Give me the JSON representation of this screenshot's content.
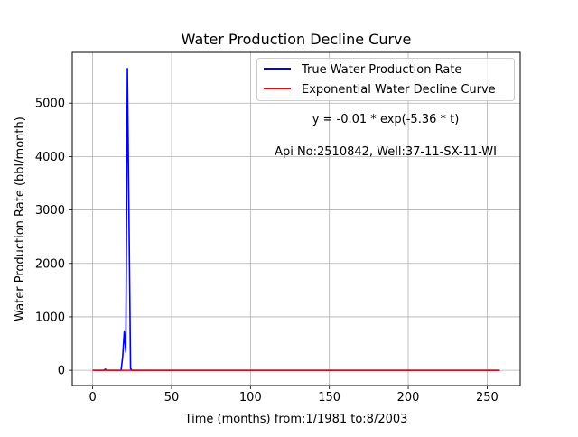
{
  "chart_data": {
    "type": "line",
    "title": "Water Production Decline Curve",
    "xlabel": "Time (months) from:1/1981 to:8/2003",
    "ylabel": "Water Production Rate (bbl/month)",
    "xlim": [
      -12.95,
      270.95
    ],
    "ylim": [
      -285,
      5950
    ],
    "xticks": [
      0,
      50,
      100,
      150,
      200,
      250
    ],
    "yticks": [
      0,
      1000,
      2000,
      3000,
      4000,
      5000
    ],
    "grid": true,
    "legend_position": "top-right",
    "annotations": [
      "y = -0.01 * exp(-5.36 * t)",
      "Api No:2510842, Well:37-11-SX-11-WI"
    ],
    "series": [
      {
        "name": "True Water Production Rate",
        "color": "#0000ff",
        "x": [
          0,
          7,
          8,
          9,
          18,
          19,
          20,
          21,
          22,
          23,
          24,
          25,
          30,
          100,
          200,
          258
        ],
        "y": [
          0,
          0,
          20,
          0,
          0,
          250,
          720,
          340,
          5650,
          2900,
          30,
          0,
          0,
          0,
          0,
          0
        ]
      },
      {
        "name": "Exponential Water Decline Curve",
        "color": "#ff0000",
        "x": [
          0,
          50,
          100,
          150,
          200,
          258
        ],
        "y": [
          -0.01,
          0,
          0,
          0,
          0,
          0
        ]
      }
    ]
  }
}
